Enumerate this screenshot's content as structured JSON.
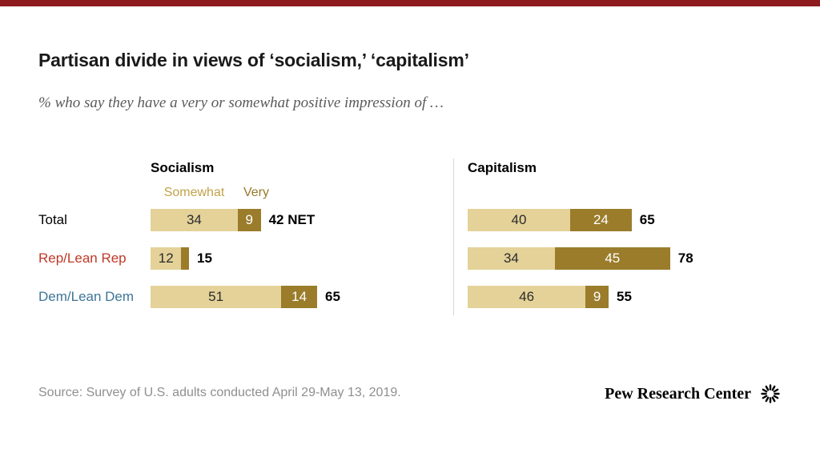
{
  "header": {
    "title": "Partisan divide in views of ‘socialism,’ ‘capitalism’",
    "subtitle": "% who say they have a very or somewhat positive impression of …"
  },
  "footer": {
    "source": "Source: Survey of U.S. adults conducted April 29-May 13, 2019.",
    "brand": "Pew Research Center"
  },
  "colors": {
    "top_bar": "#8E1B1E",
    "somewhat": "#E4D299",
    "very": "#9A7C2B",
    "somewhat_label_text": "#C2A24A",
    "very_label_text": "#96792A",
    "category_label_colors": [
      "#000000",
      "#BF3927",
      "#3D7598"
    ],
    "segment_text_on_light": "#2B2B2B",
    "segment_text_on_dark": "#FFFFFF",
    "net_text": "#000000"
  },
  "chart_data": [
    {
      "type": "bar",
      "orientation": "horizontal",
      "stacked": true,
      "title": "Socialism",
      "value_unit": "%",
      "xlim": [
        0,
        100
      ],
      "legend": [
        "Somewhat",
        "Very"
      ],
      "legend_position": "top",
      "categories": [
        "Total",
        "Rep/Lean Rep",
        "Dem/Lean Dem"
      ],
      "series": [
        {
          "name": "Somewhat",
          "values": [
            34,
            12,
            51
          ]
        },
        {
          "name": "Very",
          "values": [
            9,
            3,
            14
          ]
        }
      ],
      "segment_labels": [
        [
          "34",
          "9"
        ],
        [
          "12",
          ""
        ],
        [
          "51",
          "14"
        ]
      ],
      "net_values": [
        42,
        15,
        65
      ],
      "net_labels": [
        "42 NET",
        "15",
        "65"
      ]
    },
    {
      "type": "bar",
      "orientation": "horizontal",
      "stacked": true,
      "title": "Capitalism",
      "value_unit": "%",
      "xlim": [
        0,
        100
      ],
      "categories": [
        "Total",
        "Rep/Lean Rep",
        "Dem/Lean Dem"
      ],
      "series": [
        {
          "name": "Somewhat",
          "values": [
            40,
            34,
            46
          ]
        },
        {
          "name": "Very",
          "values": [
            24,
            45,
            9
          ]
        }
      ],
      "segment_labels": [
        [
          "40",
          "24"
        ],
        [
          "34",
          "45"
        ],
        [
          "46",
          "9"
        ]
      ],
      "net_values": [
        65,
        78,
        55
      ],
      "net_labels": [
        "65",
        "78",
        "55"
      ]
    }
  ]
}
